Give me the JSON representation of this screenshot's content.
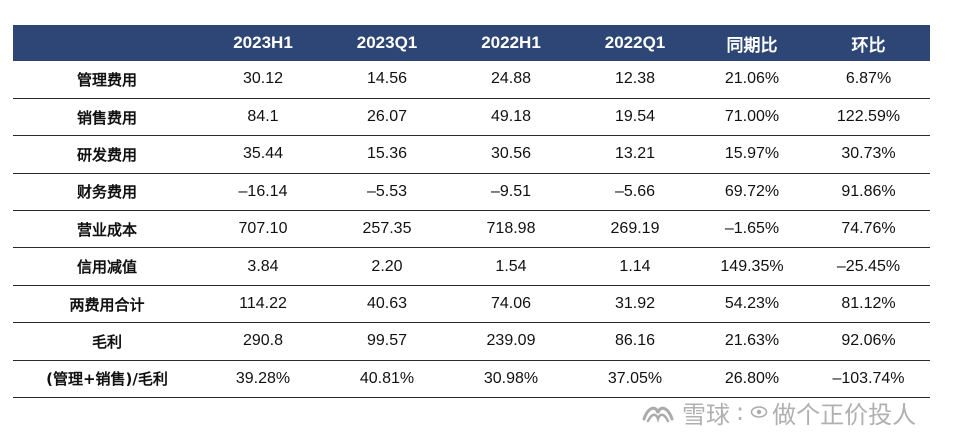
{
  "table": {
    "columns": [
      "",
      "2023H1",
      "2023Q1",
      "2022H1",
      "2022Q1",
      "同期比",
      "环比"
    ],
    "rows": [
      {
        "label": "管理费用",
        "cells": [
          "30.12",
          "14.56",
          "24.88",
          "12.38",
          "21.06%",
          "6.87%"
        ]
      },
      {
        "label": "销售费用",
        "cells": [
          "84.1",
          "26.07",
          "49.18",
          "19.54",
          "71.00%",
          "122.59%"
        ]
      },
      {
        "label": "研发费用",
        "cells": [
          "35.44",
          "15.36",
          "30.56",
          "13.21",
          "15.97%",
          "30.73%"
        ]
      },
      {
        "label": "财务费用",
        "cells": [
          "–16.14",
          "–5.53",
          "–9.51",
          "–5.66",
          "69.72%",
          "91.86%"
        ]
      },
      {
        "label": "营业成本",
        "cells": [
          "707.10",
          "257.35",
          "718.98",
          "269.19",
          "–1.65%",
          "74.76%"
        ]
      },
      {
        "label": "信用减值",
        "cells": [
          "3.84",
          "2.20",
          "1.54",
          "1.14",
          "149.35%",
          "–25.45%"
        ]
      },
      {
        "label": "两费用合计",
        "cells": [
          "114.22",
          "40.63",
          "74.06",
          "31.92",
          "54.23%",
          "81.12%"
        ]
      },
      {
        "label": "毛利",
        "cells": [
          "290.8",
          "99.57",
          "239.09",
          "86.16",
          "21.63%",
          "92.06%"
        ]
      },
      {
        "label": "(管理+销售)/毛利",
        "cells": [
          "39.28%",
          "40.81%",
          "30.98%",
          "37.05%",
          "26.80%",
          "–103.74%"
        ]
      }
    ]
  },
  "watermark": {
    "brand": "雪球",
    "separator": ":",
    "handle": "做个正价投人",
    "logo_icon": "snowball-logo-icon",
    "handle_icon": "eye-icon"
  },
  "colors": {
    "header_bg": "#2d4675",
    "header_text": "#ffffff",
    "row_rule": "#2b2b2b"
  }
}
